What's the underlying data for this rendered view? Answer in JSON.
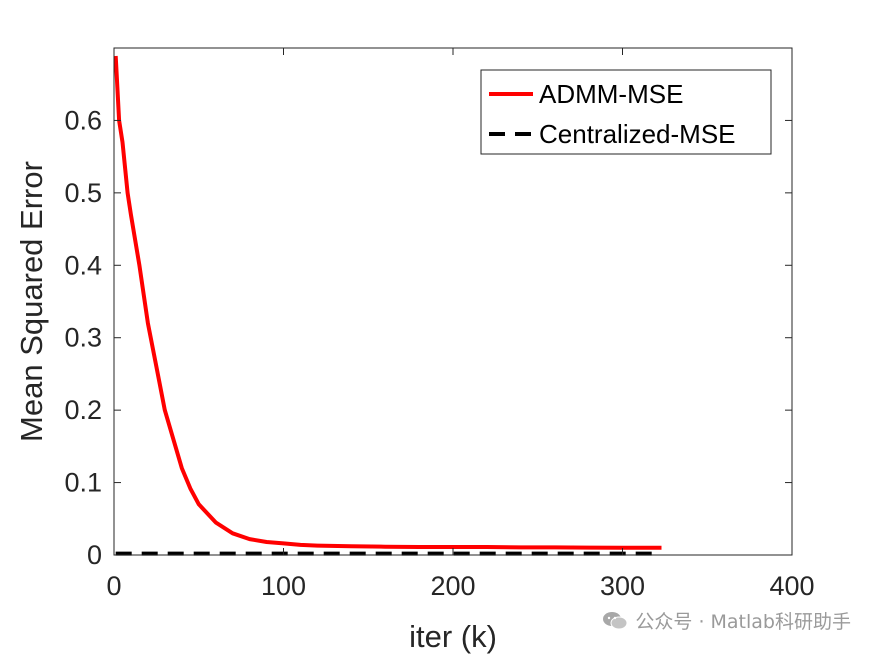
{
  "chart_data": {
    "type": "line",
    "title": "",
    "xlabel": "iter (k)",
    "ylabel": "Mean Squared Error",
    "xlim": [
      0,
      400
    ],
    "ylim": [
      0,
      0.7
    ],
    "xticks": [
      0,
      100,
      200,
      300,
      400
    ],
    "yticks": [
      0,
      0.1,
      0.2,
      0.3,
      0.4,
      0.5,
      0.6
    ],
    "xtick_labels": [
      "0",
      "100",
      "200",
      "300",
      "400"
    ],
    "ytick_labels": [
      "0",
      "0.1",
      "0.2",
      "0.3",
      "0.4",
      "0.5",
      "0.6"
    ],
    "grid": false,
    "legend_position": "top-right",
    "series": [
      {
        "name": "ADMM-MSE",
        "color": "#ff0000",
        "style": "solid",
        "x": [
          1,
          3,
          5,
          8,
          10,
          15,
          20,
          25,
          30,
          35,
          40,
          45,
          50,
          60,
          70,
          80,
          90,
          100,
          110,
          120,
          140,
          160,
          180,
          200,
          220,
          240,
          260,
          280,
          300,
          323
        ],
        "y": [
          0.689,
          0.6,
          0.57,
          0.5,
          0.47,
          0.4,
          0.32,
          0.26,
          0.2,
          0.16,
          0.12,
          0.092,
          0.07,
          0.045,
          0.03,
          0.022,
          0.018,
          0.016,
          0.014,
          0.013,
          0.012,
          0.0115,
          0.011,
          0.011,
          0.011,
          0.0105,
          0.0105,
          0.0102,
          0.0101,
          0.01
        ]
      },
      {
        "name": "Centralized-MSE",
        "color": "#000000",
        "style": "dashed",
        "x": [
          1,
          323
        ],
        "y": [
          0.002,
          0.002
        ]
      }
    ]
  },
  "watermark": {
    "text": "公众号 · Matlab科研助手",
    "icon": "wechat-icon"
  }
}
